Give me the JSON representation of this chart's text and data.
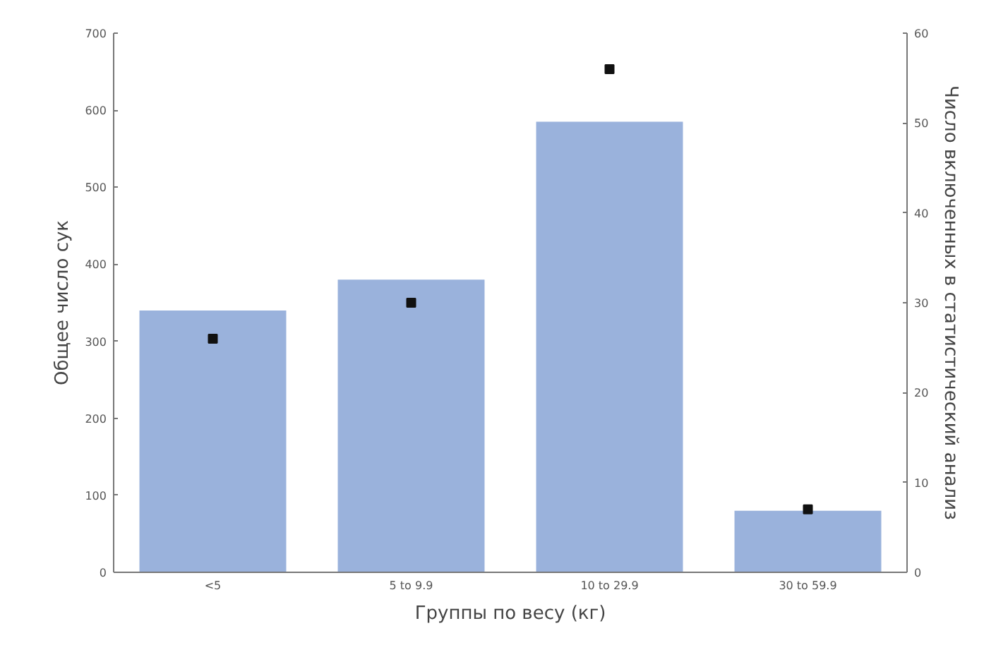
{
  "chart_data": {
    "type": "bar",
    "xlabel": "Группы по весу (кг)",
    "ylabel": "Общее число сук",
    "y2label": "Число включенных в статистический анализ",
    "categories": [
      "<5",
      "5 to 9.9",
      "10 to 29.9",
      "30 to 59.9"
    ],
    "series": [
      {
        "color": "#9ab2dc",
        "values": [
          340,
          380,
          585,
          80
        ]
      },
      {
        "type": "scatter",
        "axis": "y2",
        "marker": "square",
        "color": "#111111",
        "values": [
          26,
          30,
          56,
          7
        ]
      }
    ],
    "ylim": [
      0,
      700
    ],
    "yticks": [
      0,
      100,
      200,
      300,
      400,
      500,
      600,
      700
    ],
    "y2lim": [
      0,
      60
    ],
    "y2ticks": [
      0,
      10,
      20,
      30,
      40,
      50,
      60
    ],
    "grid": false
  }
}
